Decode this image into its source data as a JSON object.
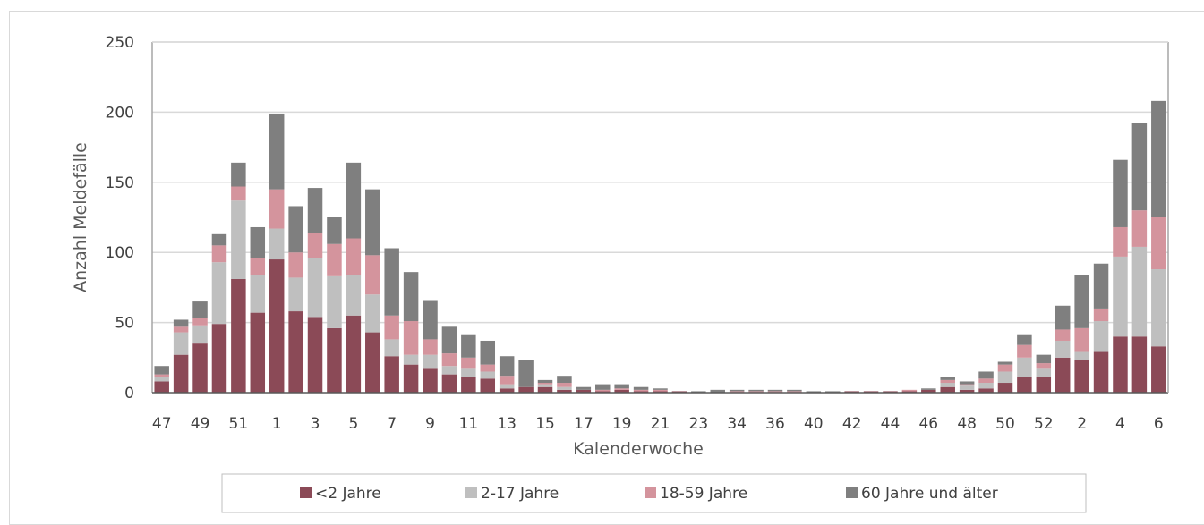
{
  "chart_data": {
    "type": "bar",
    "stacked": true,
    "xlabel": "Kalenderwoche",
    "ylabel": "Anzahl Meldefälle",
    "ylim": [
      0,
      250
    ],
    "yticks": [
      0,
      50,
      100,
      150,
      200,
      250
    ],
    "grid": true,
    "legend_position": "bottom",
    "categories": [
      "47",
      "48",
      "49",
      "50",
      "51",
      "52",
      "1",
      "2",
      "3",
      "4",
      "5",
      "6",
      "7",
      "8",
      "9",
      "10",
      "11",
      "12",
      "13",
      "14",
      "15",
      "16",
      "17",
      "18",
      "19",
      "20",
      "21",
      "22",
      "23",
      "24",
      "34",
      "35",
      "36",
      "37",
      "40",
      "41",
      "42",
      "43",
      "44",
      "45",
      "46",
      "47",
      "48",
      "49",
      "50",
      "51",
      "52",
      "1",
      "2",
      "3",
      "4",
      "5",
      "6"
    ],
    "x_tick_labels": [
      "47",
      "49",
      "51",
      "1",
      "3",
      "5",
      "7",
      "9",
      "11",
      "13",
      "15",
      "17",
      "19",
      "21",
      "23",
      "34",
      "36",
      "40",
      "42",
      "44",
      "46",
      "48",
      "50",
      "52",
      "2",
      "4",
      "6"
    ],
    "series": [
      {
        "name": "<2 Jahre",
        "color": "#8b4a57",
        "values": [
          8,
          27,
          35,
          49,
          81,
          57,
          95,
          58,
          54,
          46,
          55,
          43,
          26,
          20,
          17,
          13,
          11,
          10,
          3,
          4,
          4,
          2,
          2,
          1,
          2,
          1,
          1,
          1,
          0,
          0,
          0,
          0,
          0,
          0,
          0,
          0,
          1,
          1,
          1,
          1,
          2,
          4,
          2,
          3,
          7,
          11,
          11,
          25,
          23,
          29,
          40,
          40,
          33
        ]
      },
      {
        "name": "2-17 Jahre",
        "color": "#bfbfbf",
        "values": [
          3,
          16,
          13,
          44,
          56,
          27,
          22,
          24,
          42,
          37,
          29,
          27,
          12,
          7,
          10,
          6,
          6,
          5,
          3,
          0,
          2,
          2,
          0,
          0,
          0,
          0,
          0,
          0,
          0,
          0,
          0,
          0,
          0,
          0,
          0,
          0,
          0,
          0,
          0,
          0,
          0,
          3,
          3,
          4,
          8,
          14,
          6,
          12,
          6,
          22,
          57,
          64,
          55
        ]
      },
      {
        "name": "18-59 Jahre",
        "color": "#d4949d",
        "values": [
          2,
          4,
          5,
          12,
          10,
          12,
          28,
          18,
          18,
          23,
          26,
          28,
          17,
          24,
          11,
          9,
          8,
          5,
          6,
          0,
          1,
          3,
          0,
          1,
          1,
          1,
          1,
          0,
          0,
          0,
          1,
          1,
          1,
          1,
          0,
          0,
          0,
          0,
          0,
          1,
          0,
          2,
          1,
          3,
          5,
          9,
          4,
          8,
          17,
          9,
          21,
          26,
          37
        ]
      },
      {
        "name": "60 Jahre und älter",
        "color": "#7f7f7f",
        "values": [
          6,
          5,
          12,
          8,
          17,
          22,
          54,
          33,
          32,
          19,
          54,
          47,
          48,
          35,
          28,
          19,
          16,
          17,
          14,
          19,
          2,
          5,
          2,
          4,
          3,
          2,
          1,
          0,
          1,
          2,
          1,
          1,
          1,
          1,
          1,
          1,
          0,
          0,
          0,
          0,
          1,
          2,
          2,
          5,
          2,
          7,
          6,
          17,
          38,
          32,
          48,
          62,
          83
        ]
      }
    ]
  }
}
